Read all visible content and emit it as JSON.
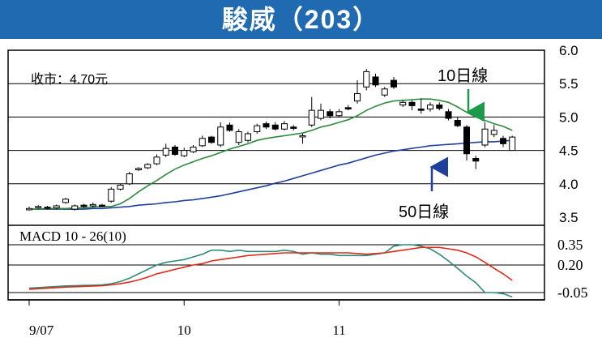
{
  "chart_data": {
    "type": "candlestick",
    "title": "駿威（203）",
    "annotations": {
      "close_label": "收市：4.70元",
      "ma10_label": "10日線",
      "ma50_label": "50日線"
    },
    "colors": {
      "title_bar": "#1f6ab0",
      "ma10": "#2e8b3e",
      "ma50": "#1f3f9e",
      "macd_line": "#2e8b7a",
      "signal_line": "#e02a1a",
      "arrow_green": "#1a9a4a",
      "arrow_blue": "#1f3f9e"
    },
    "price_panel": {
      "y_ticks": [
        "6.0",
        "5.5",
        "5.0",
        "4.5",
        "4.0",
        "3.5"
      ],
      "ylim": [
        3.5,
        6.0
      ],
      "candles": [
        [
          3.61,
          3.63,
          3.66,
          3.6
        ],
        [
          3.65,
          3.66,
          3.68,
          3.63
        ],
        [
          3.65,
          3.64,
          3.67,
          3.62
        ],
        [
          3.64,
          3.67,
          3.69,
          3.62
        ],
        [
          3.72,
          3.77,
          3.79,
          3.7
        ],
        [
          3.62,
          3.67,
          3.69,
          3.6
        ],
        [
          3.68,
          3.66,
          3.7,
          3.64
        ],
        [
          3.67,
          3.69,
          3.72,
          3.65
        ],
        [
          3.68,
          3.66,
          3.7,
          3.65
        ],
        [
          3.74,
          3.92,
          3.95,
          3.72
        ],
        [
          3.92,
          3.98,
          4.0,
          3.9
        ],
        [
          4.0,
          4.15,
          4.18,
          3.98
        ],
        [
          4.21,
          4.23,
          4.25,
          4.19
        ],
        [
          4.24,
          4.29,
          4.31,
          4.22
        ],
        [
          4.3,
          4.4,
          4.44,
          4.28
        ],
        [
          4.43,
          4.53,
          4.6,
          4.4
        ],
        [
          4.55,
          4.44,
          4.58,
          4.42
        ],
        [
          4.42,
          4.5,
          4.54,
          4.4
        ],
        [
          4.48,
          4.55,
          4.58,
          4.46
        ],
        [
          4.57,
          4.68,
          4.72,
          4.55
        ],
        [
          4.7,
          4.62,
          4.72,
          4.6
        ],
        [
          4.58,
          4.85,
          4.92,
          4.55
        ],
        [
          4.88,
          4.8,
          4.92,
          4.78
        ],
        [
          4.62,
          4.78,
          4.82,
          4.58
        ],
        [
          4.65,
          4.75,
          4.78,
          4.62
        ],
        [
          4.78,
          4.87,
          4.9,
          4.75
        ],
        [
          4.9,
          4.85,
          4.93,
          4.82
        ],
        [
          4.88,
          4.82,
          4.92,
          4.8
        ],
        [
          4.82,
          4.9,
          4.94,
          4.8
        ],
        [
          4.85,
          4.83,
          4.88,
          4.8
        ],
        [
          4.72,
          4.72,
          4.75,
          4.6
        ],
        [
          4.88,
          5.1,
          5.3,
          4.85
        ],
        [
          4.98,
          5.1,
          5.2,
          4.95
        ],
        [
          5.08,
          5.02,
          5.12,
          4.98
        ],
        [
          5.02,
          5.08,
          5.12,
          5.0
        ],
        [
          5.14,
          5.12,
          5.18,
          5.1
        ],
        [
          5.24,
          5.35,
          5.55,
          5.2
        ],
        [
          5.45,
          5.68,
          5.72,
          5.4
        ],
        [
          5.6,
          5.48,
          5.65,
          5.45
        ],
        [
          5.33,
          5.42,
          5.45,
          5.3
        ],
        [
          5.55,
          5.45,
          5.6,
          5.42
        ],
        [
          5.18,
          5.22,
          5.25,
          5.15
        ],
        [
          5.22,
          5.17,
          5.25,
          5.1
        ],
        [
          5.12,
          5.1,
          5.28,
          5.05
        ],
        [
          5.12,
          5.18,
          5.22,
          5.08
        ],
        [
          5.18,
          5.13,
          5.22,
          5.1
        ],
        [
          5.08,
          4.98,
          5.12,
          4.95
        ],
        [
          4.95,
          4.87,
          5.0,
          4.85
        ],
        [
          4.85,
          4.45,
          4.88,
          4.35
        ],
        [
          4.38,
          4.34,
          4.42,
          4.22
        ],
        [
          4.58,
          4.82,
          4.92,
          4.55
        ],
        [
          4.74,
          4.8,
          4.88,
          4.7
        ],
        [
          4.68,
          4.6,
          4.72,
          4.55
        ],
        [
          4.5,
          4.7,
          4.72,
          4.5
        ]
      ],
      "ma10": [
        3.62,
        3.62,
        3.63,
        3.63,
        3.63,
        3.64,
        3.64,
        3.65,
        3.66,
        3.66,
        3.7,
        3.78,
        3.88,
        3.97,
        4.05,
        4.14,
        4.22,
        4.28,
        4.33,
        4.38,
        4.42,
        4.47,
        4.52,
        4.56,
        4.6,
        4.65,
        4.68,
        4.7,
        4.72,
        4.74,
        4.76,
        4.8,
        4.85,
        4.88,
        4.92,
        4.96,
        5.02,
        5.1,
        5.16,
        5.21,
        5.24,
        5.25,
        5.26,
        5.27,
        5.27,
        5.25,
        5.22,
        5.15,
        5.07,
        5.0,
        4.95,
        4.9,
        4.86,
        4.8
      ],
      "ma50": [
        3.62,
        3.62,
        3.62,
        3.62,
        3.62,
        3.62,
        3.62,
        3.63,
        3.63,
        3.64,
        3.65,
        3.66,
        3.68,
        3.69,
        3.7,
        3.72,
        3.73,
        3.75,
        3.76,
        3.78,
        3.8,
        3.82,
        3.85,
        3.88,
        3.91,
        3.94,
        3.97,
        4.01,
        4.04,
        4.08,
        4.12,
        4.16,
        4.2,
        4.24,
        4.28,
        4.31,
        4.35,
        4.39,
        4.43,
        4.46,
        4.49,
        4.51,
        4.53,
        4.55,
        4.57,
        4.58,
        4.59,
        4.6,
        4.61,
        4.62,
        4.63,
        4.63,
        4.64,
        4.65
      ]
    },
    "macd_panel": {
      "label": "MACD 10 - 26(10)",
      "y_ticks": [
        "0.35",
        "0.20",
        "-0.05"
      ],
      "ylim": [
        -0.12,
        0.42
      ],
      "macd": [
        -0.01,
        -0.005,
        0.0,
        0.005,
        0.01,
        0.012,
        0.015,
        0.017,
        0.02,
        0.03,
        0.05,
        0.08,
        0.12,
        0.16,
        0.2,
        0.22,
        0.23,
        0.24,
        0.26,
        0.28,
        0.31,
        0.31,
        0.3,
        0.31,
        0.3,
        0.3,
        0.3,
        0.3,
        0.31,
        0.3,
        0.28,
        0.29,
        0.28,
        0.28,
        0.27,
        0.27,
        0.27,
        0.27,
        0.28,
        0.29,
        0.34,
        0.35,
        0.35,
        0.34,
        0.32,
        0.28,
        0.23,
        0.17,
        0.1,
        0.04,
        -0.05,
        -0.05,
        -0.06,
        -0.09
      ],
      "signal": [
        -0.02,
        -0.015,
        -0.01,
        -0.005,
        0.0,
        0.003,
        0.006,
        0.009,
        0.012,
        0.02,
        0.03,
        0.045,
        0.065,
        0.09,
        0.12,
        0.14,
        0.16,
        0.18,
        0.2,
        0.21,
        0.23,
        0.24,
        0.25,
        0.26,
        0.27,
        0.275,
        0.28,
        0.285,
        0.29,
        0.29,
        0.29,
        0.29,
        0.29,
        0.29,
        0.29,
        0.29,
        0.285,
        0.28,
        0.285,
        0.29,
        0.3,
        0.31,
        0.32,
        0.33,
        0.33,
        0.33,
        0.32,
        0.31,
        0.29,
        0.26,
        0.22,
        0.17,
        0.12,
        0.06
      ]
    },
    "x_ticks": [
      {
        "label": "9/07",
        "index": 0
      },
      {
        "label": "10",
        "index": 17
      },
      {
        "label": "11",
        "index": 34
      }
    ]
  }
}
